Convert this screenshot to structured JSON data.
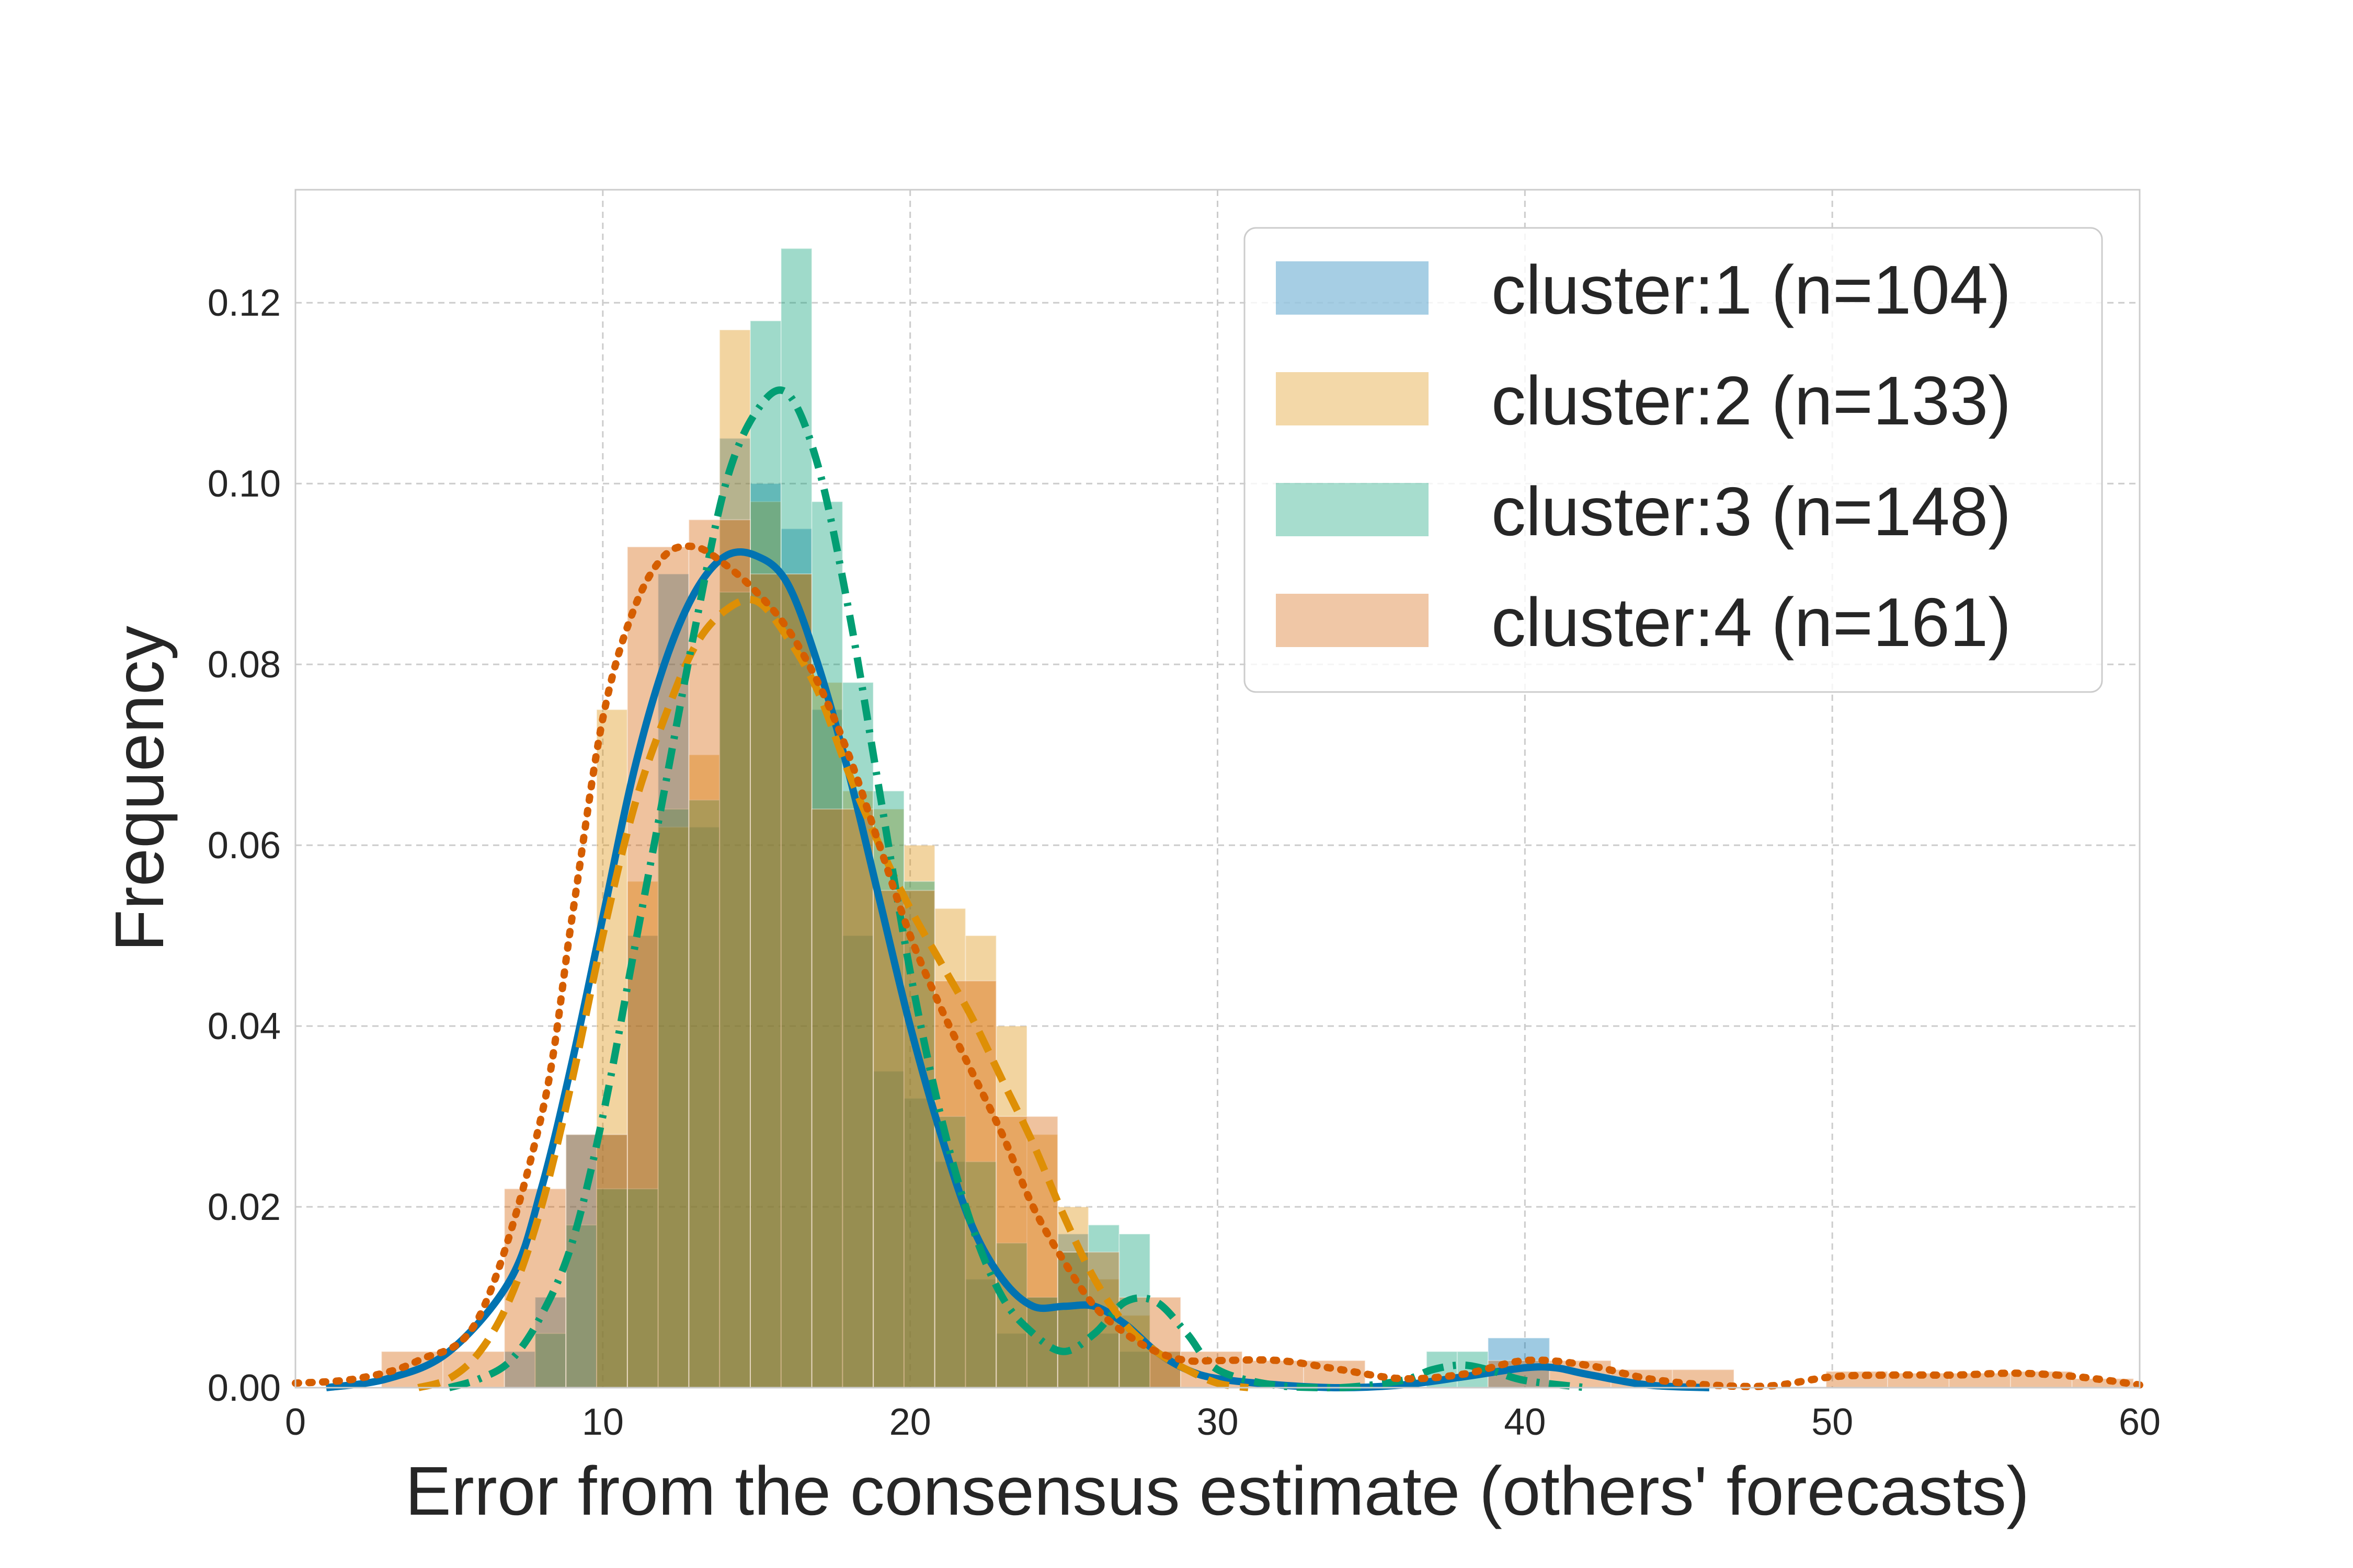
{
  "chart_data": {
    "type": "histogram",
    "xlabel": "Error from the consensus estimate (others' forecasts)",
    "ylabel": "Frequency",
    "xlim": [
      0,
      60
    ],
    "ylim": [
      0,
      0.1325
    ],
    "x_ticks": [
      0,
      10,
      20,
      30,
      40,
      50,
      60
    ],
    "x_tick_labels": [
      "0",
      "10",
      "20",
      "30",
      "40",
      "50",
      "60"
    ],
    "y_ticks": [
      0,
      0.02,
      0.04,
      0.06,
      0.08,
      0.1,
      0.12
    ],
    "y_tick_labels": [
      "0.00",
      "0.02",
      "0.04",
      "0.06",
      "0.08",
      "0.10",
      "0.12"
    ],
    "grid": true,
    "legend_position": "top-right",
    "series": [
      {
        "name": "cluster:1 (n=104)",
        "color": "#0173b2",
        "line_style": "solid",
        "bins": [
          [
            6.8,
            7.8,
            0.004
          ],
          [
            7.8,
            8.8,
            0.01
          ],
          [
            8.8,
            9.8,
            0.028
          ],
          [
            9.8,
            10.8,
            0.028
          ],
          [
            10.8,
            11.8,
            0.05
          ],
          [
            11.8,
            12.8,
            0.09
          ],
          [
            12.8,
            13.8,
            0.062
          ],
          [
            13.8,
            14.8,
            0.105
          ],
          [
            14.8,
            15.8,
            0.1
          ],
          [
            15.8,
            16.8,
            0.095
          ],
          [
            16.8,
            17.8,
            0.075
          ],
          [
            17.8,
            18.8,
            0.05
          ],
          [
            18.8,
            19.8,
            0.035
          ],
          [
            19.8,
            20.8,
            0.032
          ],
          [
            20.8,
            21.8,
            0.025
          ],
          [
            21.8,
            22.8,
            0.012
          ],
          [
            22.8,
            23.8,
            0.006
          ],
          [
            23.8,
            24.8,
            0.01
          ],
          [
            24.8,
            25.8,
            0.017
          ],
          [
            25.8,
            26.8,
            0.006
          ],
          [
            26.8,
            27.8,
            0.004
          ],
          [
            27.8,
            28.8,
            0.004
          ],
          [
            38.8,
            40.8,
            0.0055
          ]
        ],
        "kde": [
          [
            1,
            0.0
          ],
          [
            3,
            0.001
          ],
          [
            5,
            0.004
          ],
          [
            7,
            0.012
          ],
          [
            8,
            0.022
          ],
          [
            9,
            0.036
          ],
          [
            10,
            0.052
          ],
          [
            11,
            0.068
          ],
          [
            12,
            0.08
          ],
          [
            13,
            0.088
          ],
          [
            14,
            0.092
          ],
          [
            15,
            0.092
          ],
          [
            16,
            0.089
          ],
          [
            17,
            0.08
          ],
          [
            18,
            0.068
          ],
          [
            19,
            0.054
          ],
          [
            20,
            0.04
          ],
          [
            21,
            0.028
          ],
          [
            22,
            0.018
          ],
          [
            23,
            0.012
          ],
          [
            24,
            0.009
          ],
          [
            25,
            0.009
          ],
          [
            26,
            0.009
          ],
          [
            27,
            0.007
          ],
          [
            28,
            0.004
          ],
          [
            29,
            0.002
          ],
          [
            30,
            0.001
          ],
          [
            32,
            0.0003
          ],
          [
            34,
            0.0
          ],
          [
            36,
            0.0003
          ],
          [
            38,
            0.0012
          ],
          [
            40,
            0.0022
          ],
          [
            41,
            0.0022
          ],
          [
            42,
            0.0015
          ],
          [
            44,
            0.0003
          ],
          [
            46,
            0.0
          ]
        ]
      },
      {
        "name": "cluster:2 (n=133)",
        "color": "#de8f05",
        "line_style": "dashed",
        "bins": [
          [
            9.8,
            10.8,
            0.075
          ],
          [
            10.8,
            11.8,
            0.056
          ],
          [
            11.8,
            12.8,
            0.062
          ],
          [
            12.8,
            13.8,
            0.07
          ],
          [
            13.8,
            14.8,
            0.117
          ],
          [
            14.8,
            15.8,
            0.098
          ],
          [
            15.8,
            16.8,
            0.09
          ],
          [
            16.8,
            17.8,
            0.078
          ],
          [
            17.8,
            18.8,
            0.066
          ],
          [
            18.8,
            19.8,
            0.064
          ],
          [
            19.8,
            20.8,
            0.06
          ],
          [
            20.8,
            21.8,
            0.053
          ],
          [
            21.8,
            22.8,
            0.05
          ],
          [
            22.8,
            23.8,
            0.04
          ],
          [
            23.8,
            24.8,
            0.028
          ],
          [
            24.8,
            25.8,
            0.02
          ],
          [
            25.8,
            26.8,
            0.012
          ],
          [
            26.8,
            27.8,
            0.008
          ],
          [
            27.8,
            28.8,
            0.004
          ]
        ],
        "kde": [
          [
            4,
            0.0
          ],
          [
            5,
            0.001
          ],
          [
            6,
            0.004
          ],
          [
            7,
            0.01
          ],
          [
            8,
            0.02
          ],
          [
            9,
            0.034
          ],
          [
            10,
            0.05
          ],
          [
            11,
            0.064
          ],
          [
            12,
            0.074
          ],
          [
            13,
            0.082
          ],
          [
            14,
            0.086
          ],
          [
            15,
            0.087
          ],
          [
            16,
            0.083
          ],
          [
            17,
            0.077
          ],
          [
            18,
            0.068
          ],
          [
            19,
            0.06
          ],
          [
            20,
            0.053
          ],
          [
            21,
            0.047
          ],
          [
            22,
            0.041
          ],
          [
            23,
            0.034
          ],
          [
            24,
            0.027
          ],
          [
            25,
            0.019
          ],
          [
            26,
            0.012
          ],
          [
            27,
            0.007
          ],
          [
            28,
            0.004
          ],
          [
            29,
            0.002
          ],
          [
            30,
            0.0005
          ],
          [
            31,
            0.0
          ]
        ]
      },
      {
        "name": "cluster:3 (n=148)",
        "color": "#029e73",
        "line_style": "dashdot",
        "bins": [
          [
            7.8,
            8.8,
            0.006
          ],
          [
            8.8,
            9.8,
            0.018
          ],
          [
            9.8,
            10.8,
            0.022
          ],
          [
            10.8,
            11.8,
            0.022
          ],
          [
            11.8,
            12.8,
            0.064
          ],
          [
            12.8,
            13.8,
            0.065
          ],
          [
            13.8,
            14.8,
            0.088
          ],
          [
            14.8,
            15.8,
            0.118
          ],
          [
            15.8,
            16.8,
            0.126
          ],
          [
            16.8,
            17.8,
            0.098
          ],
          [
            17.8,
            18.8,
            0.078
          ],
          [
            18.8,
            19.8,
            0.066
          ],
          [
            19.8,
            20.8,
            0.056
          ],
          [
            20.8,
            21.8,
            0.03
          ],
          [
            21.8,
            22.8,
            0.025
          ],
          [
            22.8,
            23.8,
            0.016
          ],
          [
            23.8,
            24.8,
            0.01
          ],
          [
            24.8,
            25.8,
            0.015
          ],
          [
            25.8,
            26.8,
            0.018
          ],
          [
            26.8,
            27.8,
            0.017
          ],
          [
            36.8,
            37.8,
            0.004
          ],
          [
            37.8,
            38.8,
            0.004
          ]
        ],
        "kde": [
          [
            5,
            0.0
          ],
          [
            6,
            0.001
          ],
          [
            7,
            0.003
          ],
          [
            8,
            0.008
          ],
          [
            9,
            0.016
          ],
          [
            10,
            0.03
          ],
          [
            11,
            0.048
          ],
          [
            12,
            0.066
          ],
          [
            13,
            0.084
          ],
          [
            14,
            0.1
          ],
          [
            15,
            0.108
          ],
          [
            16,
            0.11
          ],
          [
            17,
            0.102
          ],
          [
            18,
            0.086
          ],
          [
            19,
            0.066
          ],
          [
            20,
            0.046
          ],
          [
            21,
            0.03
          ],
          [
            22,
            0.018
          ],
          [
            23,
            0.01
          ],
          [
            24,
            0.006
          ],
          [
            25,
            0.004
          ],
          [
            26,
            0.006
          ],
          [
            27,
            0.0095
          ],
          [
            28,
            0.0095
          ],
          [
            29,
            0.006
          ],
          [
            30,
            0.002
          ],
          [
            32,
            0.0002
          ],
          [
            34,
            0.0
          ],
          [
            36,
            0.0008
          ],
          [
            37,
            0.002
          ],
          [
            38,
            0.0025
          ],
          [
            39,
            0.0018
          ],
          [
            40,
            0.0008
          ],
          [
            42,
            0.0
          ]
        ]
      },
      {
        "name": "cluster:4 (n=161)",
        "color": "#d55e00",
        "line_style": "dotted",
        "bins": [
          [
            2.8,
            4.8,
            0.004
          ],
          [
            4.8,
            6.8,
            0.004
          ],
          [
            6.8,
            8.8,
            0.022
          ],
          [
            8.8,
            10.8,
            0.028
          ],
          [
            10.8,
            12.8,
            0.093
          ],
          [
            12.8,
            14.8,
            0.096
          ],
          [
            14.8,
            16.8,
            0.09
          ],
          [
            16.8,
            18.8,
            0.064
          ],
          [
            18.8,
            20.8,
            0.055
          ],
          [
            20.8,
            22.8,
            0.045
          ],
          [
            22.8,
            24.8,
            0.03
          ],
          [
            24.8,
            26.8,
            0.015
          ],
          [
            26.8,
            28.8,
            0.01
          ],
          [
            28.8,
            30.8,
            0.004
          ],
          [
            30.8,
            32.8,
            0.003
          ],
          [
            32.8,
            34.8,
            0.003
          ],
          [
            38.8,
            40.8,
            0.003
          ],
          [
            40.8,
            42.8,
            0.003
          ],
          [
            42.8,
            44.8,
            0.002
          ],
          [
            44.8,
            46.8,
            0.002
          ],
          [
            49.8,
            51.8,
            0.0018
          ],
          [
            51.8,
            53.8,
            0.0016
          ],
          [
            53.8,
            55.8,
            0.0016
          ],
          [
            55.8,
            57.8,
            0.0018
          ],
          [
            57.8,
            59.8,
            0.001
          ]
        ],
        "kde": [
          [
            0,
            0.0005
          ],
          [
            2,
            0.001
          ],
          [
            4,
            0.003
          ],
          [
            6,
            0.008
          ],
          [
            8,
            0.03
          ],
          [
            9,
            0.052
          ],
          [
            10,
            0.074
          ],
          [
            11,
            0.086
          ],
          [
            12,
            0.092
          ],
          [
            13,
            0.093
          ],
          [
            14,
            0.091
          ],
          [
            15,
            0.088
          ],
          [
            16,
            0.084
          ],
          [
            17,
            0.078
          ],
          [
            18,
            0.07
          ],
          [
            19,
            0.06
          ],
          [
            20,
            0.05
          ],
          [
            21,
            0.042
          ],
          [
            22,
            0.035
          ],
          [
            23,
            0.028
          ],
          [
            24,
            0.02
          ],
          [
            25,
            0.014
          ],
          [
            26,
            0.009
          ],
          [
            27,
            0.006
          ],
          [
            28,
            0.004
          ],
          [
            29,
            0.003
          ],
          [
            30,
            0.003
          ],
          [
            32,
            0.003
          ],
          [
            34,
            0.002
          ],
          [
            36,
            0.001
          ],
          [
            38,
            0.0015
          ],
          [
            40,
            0.003
          ],
          [
            42,
            0.0025
          ],
          [
            44,
            0.001
          ],
          [
            46,
            0.0003
          ],
          [
            48,
            0.0002
          ],
          [
            50,
            0.0012
          ],
          [
            52,
            0.0014
          ],
          [
            54,
            0.0014
          ],
          [
            56,
            0.0016
          ],
          [
            58,
            0.0012
          ],
          [
            60,
            0.0003
          ]
        ]
      }
    ]
  }
}
